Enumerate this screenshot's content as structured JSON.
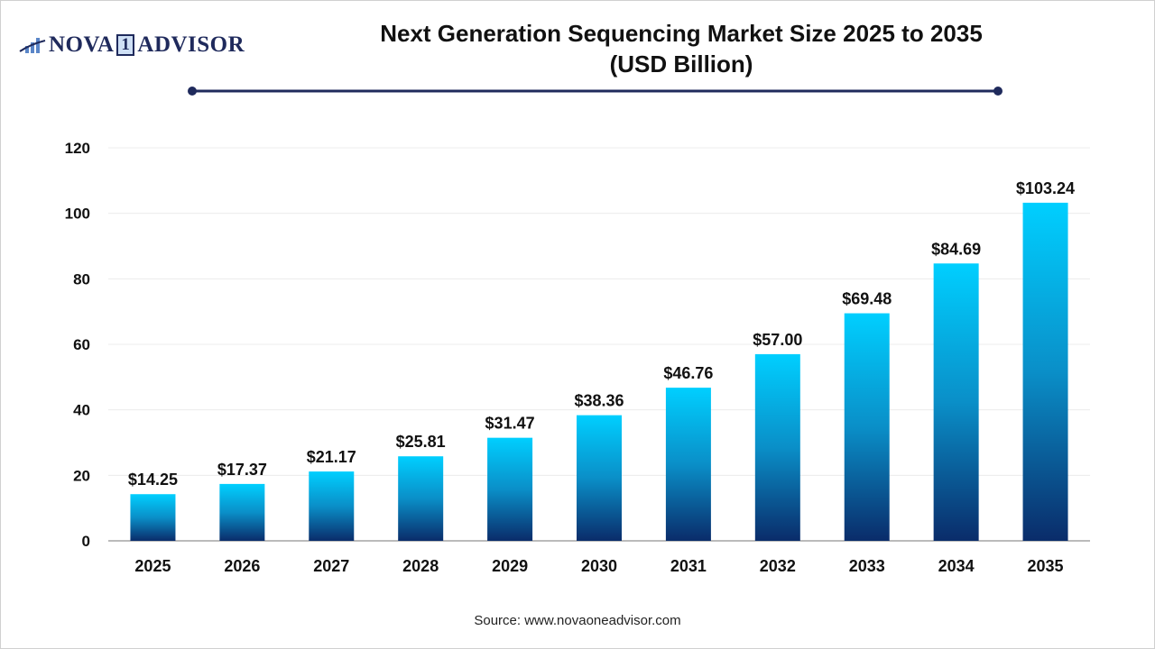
{
  "logo": {
    "text_before": "NOVA",
    "text_digit": "1",
    "text_after": "ADVISOR"
  },
  "colors": {
    "bar_top": "#00cfff",
    "bar_bottom": "#0a2c6a",
    "title_rule": "#1f2a5c"
  },
  "chart_data": {
    "type": "bar",
    "title_line1": "Next Generation Sequencing Market Size 2025 to 2035",
    "title_line2": "(USD Billion)",
    "categories": [
      "2025",
      "2026",
      "2027",
      "2028",
      "2029",
      "2030",
      "2031",
      "2032",
      "2033",
      "2034",
      "2035"
    ],
    "values": [
      14.25,
      17.37,
      21.17,
      25.81,
      31.47,
      38.36,
      46.76,
      57.0,
      69.48,
      84.69,
      103.24
    ],
    "data_labels": [
      "$14.25",
      "$17.37",
      "$21.17",
      "$25.81",
      "$31.47",
      "$38.36",
      "$46.76",
      "$57.00",
      "$69.48",
      "$84.69",
      "$103.24"
    ],
    "ylim": [
      0,
      120
    ],
    "yticks": [
      0,
      20,
      40,
      60,
      80,
      100,
      120
    ],
    "grid": true,
    "legend": "none",
    "xlabel": "",
    "ylabel": ""
  },
  "source": "Source: www.novaoneadvisor.com"
}
